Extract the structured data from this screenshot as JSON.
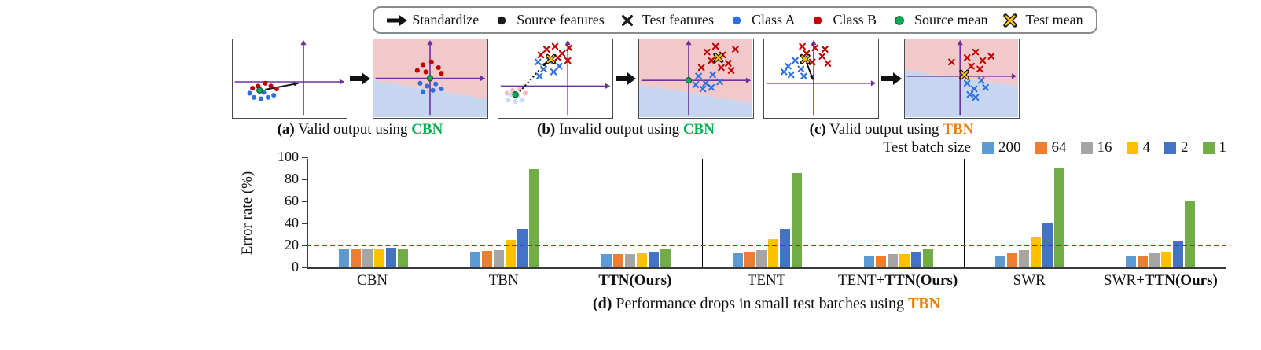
{
  "colors": {
    "class_a": "#2E6FE0",
    "class_b": "#C00000",
    "source_mean": "#00B050",
    "test_mean": "#FFC000",
    "axis_purple": "#7030A0",
    "region_pink": "#F2C9CA",
    "region_blue": "#C7D6F0",
    "cbn_green": "#00B050",
    "tbn_orange": "#E8820C"
  },
  "top_legend": {
    "items": [
      {
        "icon": "arrow",
        "color": "#111111",
        "label": "Standardize"
      },
      {
        "icon": "dot",
        "color": "#1a1a1a",
        "label": "Source features"
      },
      {
        "icon": "cross",
        "color": "#1a1a1a",
        "label": "Test features"
      },
      {
        "icon": "dot",
        "color": "#2E6FE0",
        "label": "Class A"
      },
      {
        "icon": "dot",
        "color": "#C00000",
        "label": "Class B"
      },
      {
        "icon": "dot",
        "color": "#00B050",
        "outline": "#17663A",
        "label": "Source mean"
      },
      {
        "icon": "cross",
        "color": "#FFC000",
        "outline": "#1a1a1a",
        "label": "Test mean"
      }
    ]
  },
  "panels": [
    {
      "caption": {
        "tag": "(a)",
        "text": "Valid output using",
        "method": "CBN",
        "method_color": "#00B050"
      },
      "boxes": [
        {
          "axes": [
            100,
            60
          ],
          "region": null,
          "arrows": [
            [
              46,
              71,
              93,
              62,
              "solid"
            ]
          ],
          "points": [
            [
              "dB",
              36,
              66
            ],
            [
              "dB",
              46,
              62
            ],
            [
              "dB",
              54,
              66
            ],
            [
              "dB",
              62,
              70
            ],
            [
              "dB",
              28,
              69
            ],
            [
              "dA",
              30,
              82
            ],
            [
              "dA",
              40,
              84
            ],
            [
              "dA",
              50,
              82
            ],
            [
              "dA",
              58,
              79
            ],
            [
              "dA",
              24,
              76
            ],
            [
              "dA",
              44,
              75
            ],
            [
              "mS",
              38,
              72
            ]
          ]
        },
        {
          "axes": [
            80,
            55
          ],
          "region": [
            58,
            84
          ],
          "arrows": [],
          "points": [
            [
              "dB",
              70,
              36
            ],
            [
              "dB",
              82,
              32
            ],
            [
              "dB",
              92,
              40
            ],
            [
              "dB",
              74,
              46
            ],
            [
              "dB",
              96,
              48
            ],
            [
              "dB",
              62,
              44
            ],
            [
              "dA",
              66,
              62
            ],
            [
              "dA",
              76,
              66
            ],
            [
              "dA",
              88,
              63
            ],
            [
              "dA",
              96,
              70
            ],
            [
              "dA",
              70,
              74
            ],
            [
              "dA",
              84,
              72
            ],
            [
              "mS",
              80,
              55
            ]
          ]
        }
      ]
    },
    {
      "caption": {
        "tag": "(b)",
        "text": "Invalid output using",
        "method": "CBN",
        "method_color": "#00B050"
      },
      "boxes": [
        {
          "axes": [
            98,
            66
          ],
          "region": null,
          "arrows": [
            [
              30,
              74,
              68,
              32,
              "dotted"
            ]
          ],
          "points": [
            [
              "dA",
              14,
              86,
              1
            ],
            [
              "dA",
              24,
              88,
              1
            ],
            [
              "dA",
              34,
              86,
              1
            ],
            [
              "dA",
              18,
              78,
              1
            ],
            [
              "dA",
              28,
              80,
              1
            ],
            [
              "dB",
              20,
              72,
              1
            ],
            [
              "dB",
              30,
              70,
              1
            ],
            [
              "dB",
              38,
              76,
              1
            ],
            [
              "dB",
              12,
              76,
              1
            ],
            [
              "mS",
              24,
              78
            ],
            [
              "xA",
              56,
              32
            ],
            [
              "xA",
              64,
              42
            ],
            [
              "xA",
              72,
              30
            ],
            [
              "xA",
              78,
              46
            ],
            [
              "xA",
              58,
              52
            ],
            [
              "xA",
              86,
              38
            ],
            [
              "xB",
              68,
              14
            ],
            [
              "xB",
              80,
              10
            ],
            [
              "xB",
              90,
              20
            ],
            [
              "xB",
              98,
              30
            ],
            [
              "xB",
              84,
              26
            ],
            [
              "xB",
              60,
              22
            ],
            [
              "xB",
              100,
              12
            ],
            [
              "mT",
              74,
              28
            ]
          ]
        },
        {
          "axes": [
            70,
            58
          ],
          "region": [
            64,
            90
          ],
          "arrows": [],
          "points": [
            [
              "xA",
              84,
              52
            ],
            [
              "xA",
              94,
              62
            ],
            [
              "xA",
              104,
              50
            ],
            [
              "xA",
              114,
              60
            ],
            [
              "xA",
              90,
              70
            ],
            [
              "xA",
              102,
              68
            ],
            [
              "xA",
              80,
              64
            ],
            [
              "xB",
              96,
              18
            ],
            [
              "xB",
              108,
              10
            ],
            [
              "xB",
              118,
              22
            ],
            [
              "xB",
              126,
              34
            ],
            [
              "xB",
              102,
              30
            ],
            [
              "xB",
              136,
              14
            ],
            [
              "xB",
              116,
              40
            ],
            [
              "xB",
              130,
              44
            ],
            [
              "xB",
              88,
              40
            ],
            [
              "mS",
              70,
              58
            ],
            [
              "mT",
              112,
              26
            ]
          ]
        }
      ]
    },
    {
      "caption": {
        "tag": "(c)",
        "text": "Valid output using",
        "method": "TBN",
        "method_color": "#E8820C"
      },
      "boxes": [
        {
          "axes": [
            70,
            62
          ],
          "region": null,
          "arrows": [
            [
              60,
              33,
              69,
              57,
              "solid"
            ]
          ],
          "points": [
            [
              "xA",
              34,
              38
            ],
            [
              "xA",
              44,
              30
            ],
            [
              "xA",
              52,
              42
            ],
            [
              "xA",
              38,
              50
            ],
            [
              "xA",
              56,
              52
            ],
            [
              "xA",
              28,
              46
            ],
            [
              "xB",
              60,
              20
            ],
            [
              "xB",
              72,
              12
            ],
            [
              "xB",
              82,
              24
            ],
            [
              "xB",
              90,
              34
            ],
            [
              "xB",
              68,
              32
            ],
            [
              "xB",
              54,
              10
            ],
            [
              "xB",
              86,
              14
            ],
            [
              "mT",
              58,
              28
            ]
          ]
        },
        {
          "axes": [
            78,
            52
          ],
          "region": [
            44,
            66
          ],
          "arrows": [],
          "points": [
            [
              "xB",
              88,
              26
            ],
            [
              "xB",
              100,
              18
            ],
            [
              "xB",
              110,
              30
            ],
            [
              "xB",
              94,
              38
            ],
            [
              "xB",
              122,
              24
            ],
            [
              "xB",
              66,
              32
            ],
            [
              "xB",
              106,
              42
            ],
            [
              "xA",
              88,
              62
            ],
            [
              "xA",
              98,
              70
            ],
            [
              "xA",
              108,
              58
            ],
            [
              "xA",
              92,
              78
            ],
            [
              "xA",
              114,
              68
            ],
            [
              "xA",
              100,
              82
            ],
            [
              "mT",
              84,
              50
            ]
          ]
        }
      ]
    }
  ],
  "chart_data": {
    "type": "bar",
    "title": "(d) Performance drops in small test batches using TBN",
    "caption": {
      "tag": "(d)",
      "text": "Performance drops in small test batches using",
      "method": "TBN",
      "method_color": "#E8820C"
    },
    "xlabel": "",
    "ylabel": "Error rate (%)",
    "ylim": [
      0,
      100
    ],
    "yticks": [
      0,
      20,
      40,
      60,
      80,
      100
    ],
    "grid": false,
    "ref_line": {
      "y": 20,
      "color": "#FE0000",
      "style": "dashed"
    },
    "legend_title": "Test batch size",
    "legend_position": "top-right",
    "group_separators_after": [
      2,
      4
    ],
    "categories": [
      "CBN",
      "TBN",
      "TTN(Ours)",
      "TENT",
      "TENT+TTN(Ours)",
      "SWR",
      "SWR+TTN(Ours)"
    ],
    "category_parts": [
      {
        "normal": "CBN",
        "bold": ""
      },
      {
        "normal": "TBN",
        "bold": ""
      },
      {
        "normal": "",
        "bold": "TTN(Ours)"
      },
      {
        "normal": "TENT",
        "bold": ""
      },
      {
        "normal": "TENT+",
        "bold": "TTN(Ours)"
      },
      {
        "normal": "SWR",
        "bold": ""
      },
      {
        "normal": "SWR+",
        "bold": "TTN(Ours)"
      }
    ],
    "series": [
      {
        "name": "200",
        "color": "#5B9BD5",
        "values": [
          17,
          14,
          12,
          13,
          11,
          10,
          10
        ]
      },
      {
        "name": "64",
        "color": "#ED7D31",
        "values": [
          17,
          15,
          12,
          14,
          11,
          13,
          11
        ]
      },
      {
        "name": "16",
        "color": "#A5A5A5",
        "values": [
          17,
          16,
          12,
          16,
          12,
          16,
          13
        ]
      },
      {
        "name": "4",
        "color": "#FFC000",
        "values": [
          17,
          25,
          13,
          26,
          12,
          28,
          14
        ]
      },
      {
        "name": "2",
        "color": "#4472C4",
        "values": [
          18,
          35,
          14,
          35,
          14,
          40,
          24
        ]
      },
      {
        "name": "1",
        "color": "#70AD47",
        "values": [
          17,
          89,
          17,
          86,
          17,
          90,
          61
        ]
      }
    ]
  }
}
